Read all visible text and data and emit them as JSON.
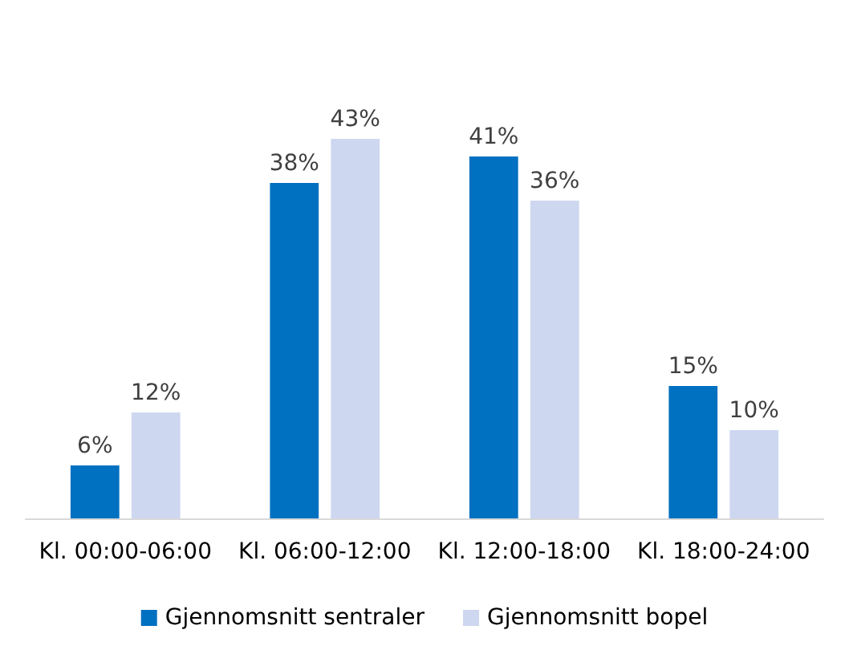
{
  "chart_data": {
    "type": "bar",
    "categories": [
      "Kl. 00:00-06:00",
      "Kl. 06:00-12:00",
      "Kl. 12:00-18:00",
      "Kl. 18:00-24:00"
    ],
    "series": [
      {
        "name": "Gjennomsnitt sentraler",
        "color": "#0070c0",
        "values": [
          6,
          38,
          41,
          15
        ],
        "value_labels": [
          "6%",
          "38%",
          "41%",
          "15%"
        ]
      },
      {
        "name": "Gjennomsnitt bopel",
        "color": "#cdd7f0",
        "values": [
          12,
          43,
          36,
          10
        ],
        "value_labels": [
          "12%",
          "43%",
          "36%",
          "10%"
        ]
      }
    ],
    "legend": "bottom",
    "grid": false
  }
}
